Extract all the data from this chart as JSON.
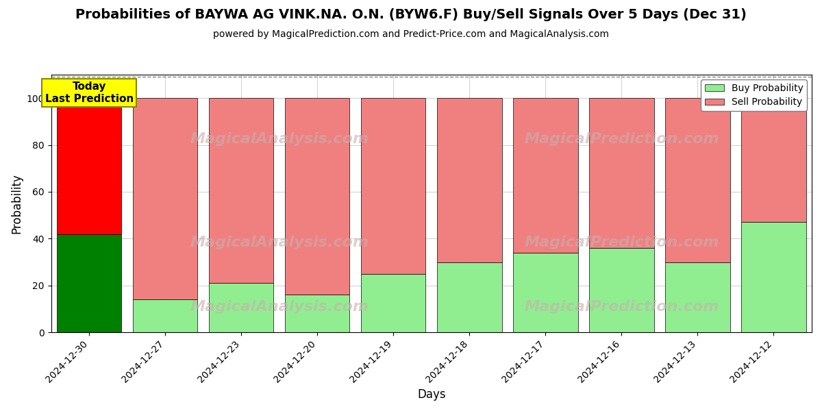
{
  "title": "Probabilities of BAYWA AG VINK.NA. O.N. (BYW6.F) Buy/Sell Signals Over 5 Days (Dec 31)",
  "subtitle": "powered by MagicalPrediction.com and Predict-Price.com and MagicalAnalysis.com",
  "xlabel": "Days",
  "ylabel": "Probability",
  "dates": [
    "2024-12-30",
    "2024-12-27",
    "2024-12-23",
    "2024-12-20",
    "2024-12-19",
    "2024-12-18",
    "2024-12-17",
    "2024-12-16",
    "2024-12-13",
    "2024-12-12"
  ],
  "buy_values": [
    42,
    14,
    21,
    16,
    25,
    30,
    34,
    36,
    30,
    47
  ],
  "sell_values": [
    58,
    86,
    79,
    84,
    75,
    70,
    66,
    64,
    70,
    53
  ],
  "buy_color_today": "#008000",
  "sell_color_today": "#FF0000",
  "buy_color_other": "#90EE90",
  "sell_color_other": "#F08080",
  "today_label_bg": "#FFFF00",
  "today_label_text": "Today\nLast Prediction",
  "legend_buy": "Buy Probability",
  "legend_sell": "Sell Probability",
  "ylim": [
    0,
    110
  ],
  "yticks": [
    0,
    20,
    40,
    60,
    80,
    100
  ],
  "dashed_line_y": 109,
  "bar_width": 0.85,
  "figsize": [
    12,
    6
  ],
  "dpi": 100
}
